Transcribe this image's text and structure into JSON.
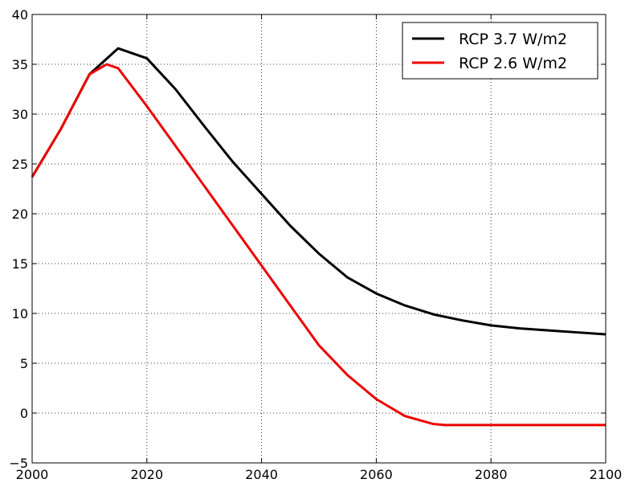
{
  "chart_data": {
    "type": "line",
    "series": [
      {
        "name": "RCP 3.7 W/m2",
        "color": "#000000",
        "x": [
          2000,
          2005,
          2010,
          2015,
          2020,
          2025,
          2030,
          2035,
          2040,
          2045,
          2050,
          2055,
          2060,
          2065,
          2070,
          2075,
          2080,
          2085,
          2090,
          2095,
          2100
        ],
        "values": [
          23.7,
          28.5,
          34,
          36.6,
          35.6,
          32.5,
          28.8,
          25.2,
          22,
          18.8,
          16,
          13.6,
          12,
          10.8,
          9.9,
          9.3,
          8.8,
          8.5,
          8.3,
          8.1,
          7.9
        ]
      },
      {
        "name": "RCP 2.6 W/m2",
        "color": "#ee0000",
        "x": [
          2000,
          2005,
          2010,
          2013,
          2015,
          2020,
          2025,
          2030,
          2035,
          2040,
          2045,
          2050,
          2055,
          2060,
          2065,
          2070,
          2072,
          2080,
          2090,
          2100
        ],
        "values": [
          23.7,
          28.5,
          34,
          35,
          34.6,
          30.8,
          26.8,
          22.8,
          18.8,
          14.8,
          10.8,
          6.8,
          3.8,
          1.4,
          -0.3,
          -1.1,
          -1.2,
          -1.2,
          -1.2,
          -1.2
        ]
      }
    ],
    "xlim": [
      2000,
      2100
    ],
    "xticks": [
      2000,
      2020,
      2040,
      2060,
      2080,
      2100
    ],
    "ylim": [
      -5,
      40
    ],
    "yticks": [
      {
        "value": -5,
        "label": "−5"
      },
      0,
      5,
      10,
      15,
      20,
      25,
      30,
      35,
      40
    ],
    "grid": true,
    "legend": "upper right"
  }
}
